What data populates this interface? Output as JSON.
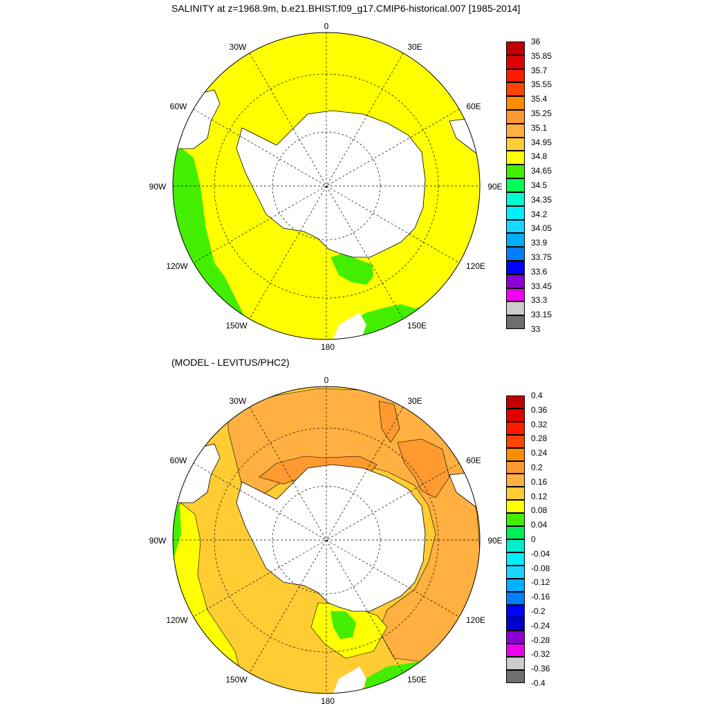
{
  "titles": {
    "main": "SALINITY at z=1968.9m, b.e21.BHIST.f09_g17.CMIP6-historical.007 [1985-2014]",
    "diff": "(MODEL - LEVITUS/PHC2)"
  },
  "longitude_labels": [
    "0",
    "30E",
    "60E",
    "90E",
    "120E",
    "150E",
    "180",
    "150W",
    "120W",
    "90W",
    "60W",
    "30W"
  ],
  "panel1": {
    "colorbar_labels": [
      "36",
      "35.85",
      "35.7",
      "35.55",
      "35.4",
      "35.25",
      "35.1",
      "34.95",
      "34.8",
      "34.65",
      "34.5",
      "34.35",
      "34.2",
      "34.05",
      "33.9",
      "33.75",
      "33.6",
      "33.45",
      "33.3",
      "33.15",
      "33"
    ],
    "colorbar_colors": [
      "#c00000",
      "#e00000",
      "#ff1a00",
      "#ff4400",
      "#ff8c00",
      "#ff9a30",
      "#ffb040",
      "#ffcc33",
      "#ffff00",
      "#44ee00",
      "#00ff55",
      "#00ffcc",
      "#00eeff",
      "#18d6ff",
      "#00b0ff",
      "#007fff",
      "#0000ff",
      "#8a00d4",
      "#ee00ee",
      "#cccccc",
      "#6e6e6e"
    ],
    "ocean_color": "#ffff00",
    "low_color": "#44ee00"
  },
  "panel2": {
    "colorbar_labels": [
      "0.4",
      "0.36",
      "0.32",
      "0.28",
      "0.24",
      "0.2",
      "0.16",
      "0.12",
      "0.08",
      "0.04",
      "0",
      "-0.04",
      "-0.08",
      "-0.12",
      "-0.16",
      "-0.2",
      "-0.24",
      "-0.28",
      "-0.32",
      "-0.36",
      "-0.4"
    ],
    "colorbar_colors": [
      "#c00000",
      "#e00000",
      "#ff1a00",
      "#ff4400",
      "#ff8c00",
      "#ff9a30",
      "#ffb040",
      "#ffcc33",
      "#ffff00",
      "#44ee00",
      "#00ee55",
      "#00eecc",
      "#00eeff",
      "#18d6ff",
      "#00b0ff",
      "#007fff",
      "#0000ff",
      "#0000cc",
      "#8a00d4",
      "#ee00ee",
      "#cccccc",
      "#6e6e6e"
    ],
    "ocean_color": "#ffcc33",
    "high_color": "#ffb040",
    "higher_color": "#ff9a30",
    "low_color": "#ffff00",
    "green_color": "#44ee00"
  }
}
